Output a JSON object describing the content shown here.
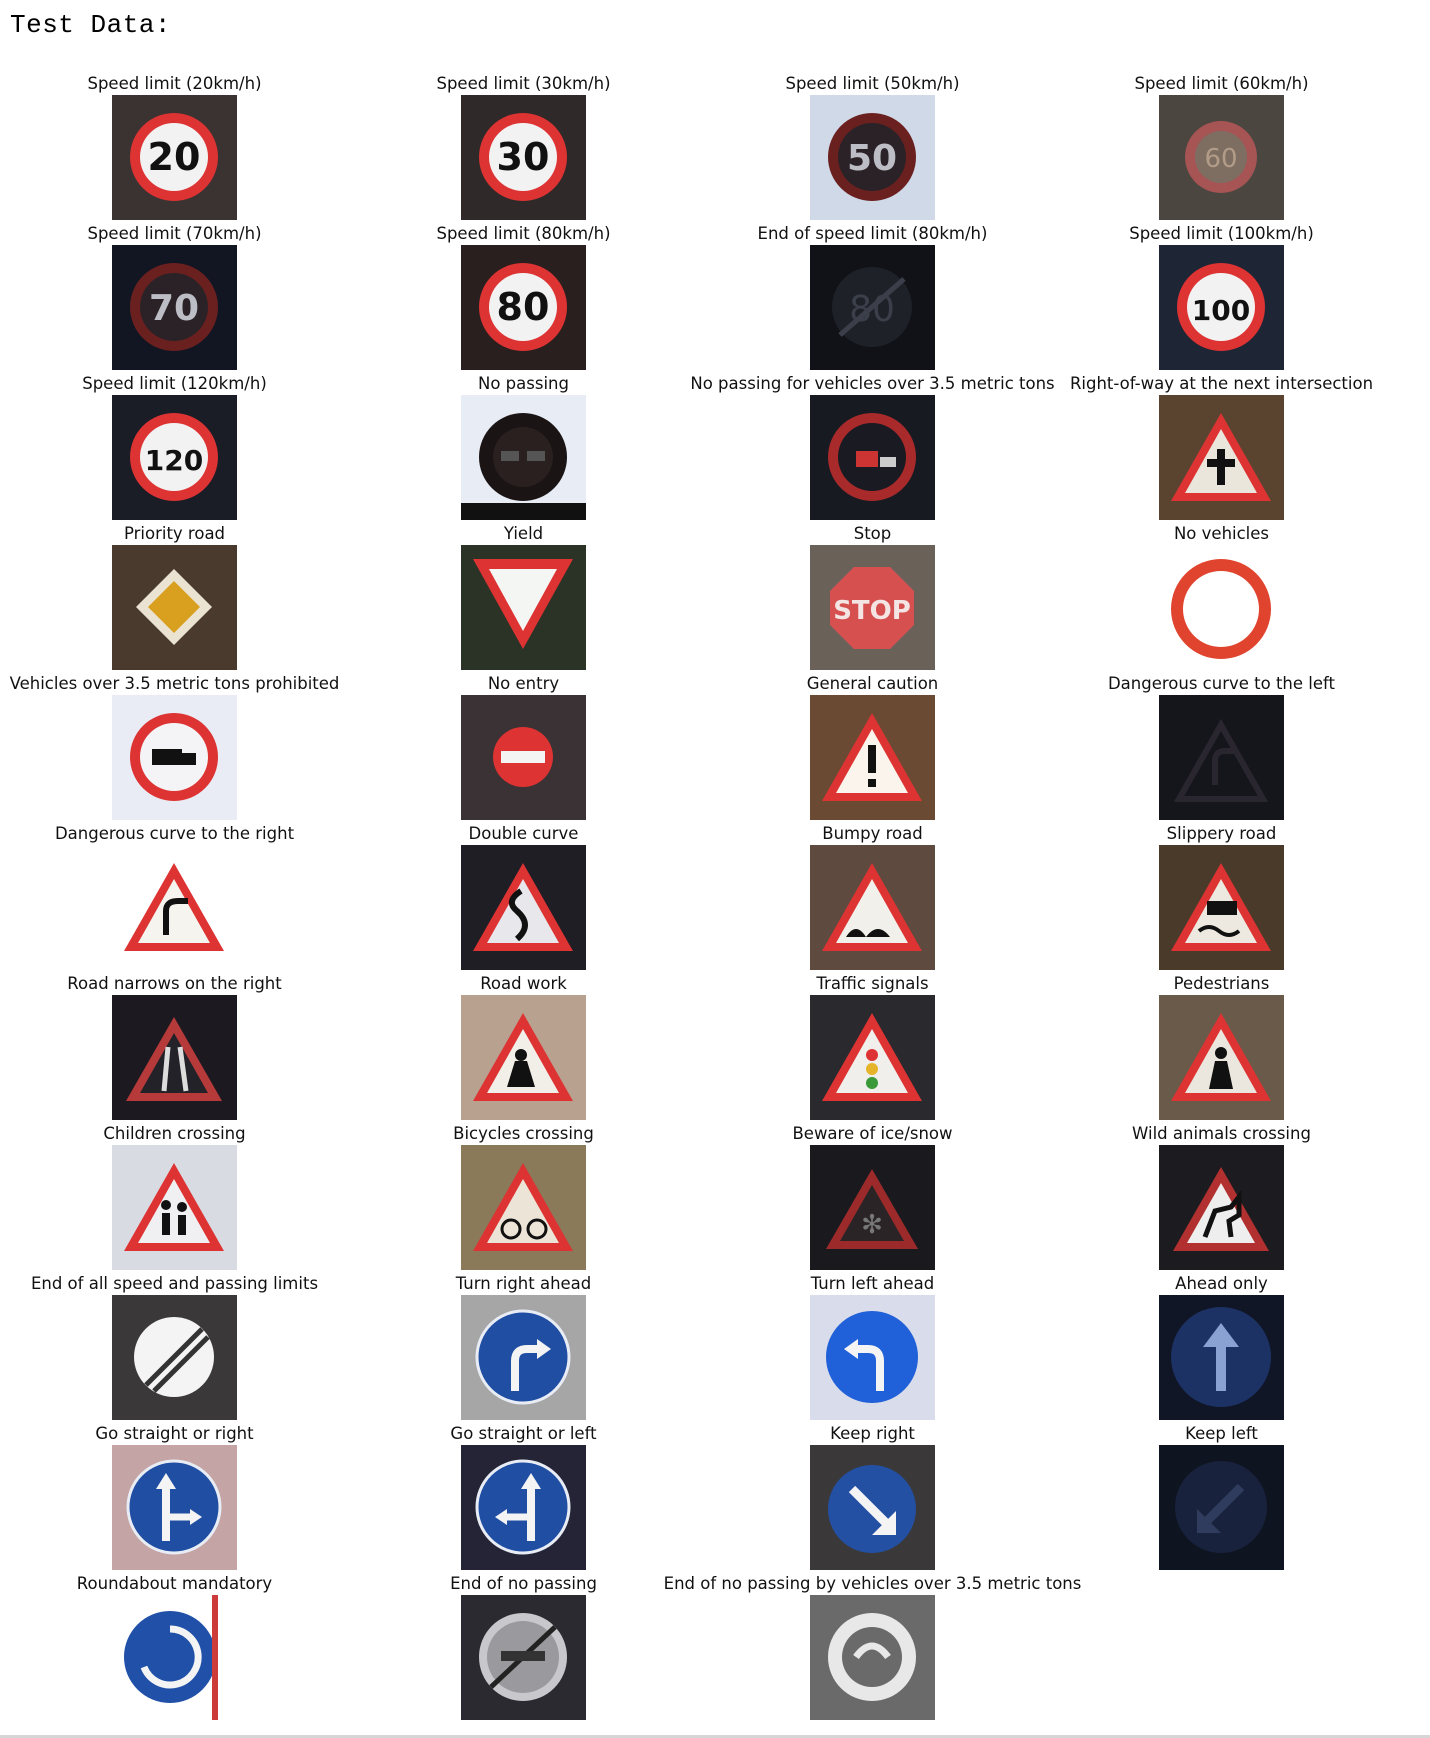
{
  "heading": "Test Data:",
  "signs": [
    {
      "label": "Speed limit (20km/h)",
      "kind": "speed",
      "text": "20",
      "bg": "#3b3232"
    },
    {
      "label": "Speed limit (30km/h)",
      "kind": "speed",
      "text": "30",
      "bg": "#2f2929"
    },
    {
      "label": "Speed limit (50km/h)",
      "kind": "speed-dark",
      "text": "50",
      "bg": "#cfd9e8"
    },
    {
      "label": "Speed limit (60km/h)",
      "kind": "speed-faint",
      "text": "60",
      "bg": "#4b4640"
    },
    {
      "label": "Speed limit (70km/h)",
      "kind": "speed-dark",
      "text": "70",
      "bg": "#121522"
    },
    {
      "label": "Speed limit (80km/h)",
      "kind": "speed",
      "text": "80",
      "bg": "#2a1f1f"
    },
    {
      "label": "End of speed limit (80km/h)",
      "kind": "end-speed",
      "text": "80",
      "bg": "#101218"
    },
    {
      "label": "Speed limit (100km/h)",
      "kind": "speed",
      "text": "100",
      "bg": "#1e2535"
    },
    {
      "label": "Speed limit (120km/h)",
      "kind": "speed",
      "text": "120",
      "bg": "#1a1c26"
    },
    {
      "label": "No passing",
      "kind": "no-passing",
      "bg": "#e8ecf4"
    },
    {
      "label": "No passing for vehicles over 3.5 metric tons",
      "kind": "no-passing-truck",
      "bg": "#181a22"
    },
    {
      "label": "Right-of-way at the next intersection",
      "kind": "triangle-plus",
      "bg": "#5a4430"
    },
    {
      "label": "Priority road",
      "kind": "priority",
      "bg": "#4a3a2e"
    },
    {
      "label": "Yield",
      "kind": "yield",
      "bg": "#2a3326"
    },
    {
      "label": "Stop",
      "kind": "stop",
      "bg": "#6a6258"
    },
    {
      "label": "No vehicles",
      "kind": "no-vehicles",
      "bg": "#ffffff"
    },
    {
      "label": "Vehicles over 3.5 metric tons prohibited",
      "kind": "no-trucks",
      "bg": "#e9ecf5"
    },
    {
      "label": "No entry",
      "kind": "no-entry",
      "bg": "#3a3234"
    },
    {
      "label": "General caution",
      "kind": "caution",
      "bg": "#6b4a34"
    },
    {
      "label": "Dangerous curve to the left",
      "kind": "curve-left",
      "bg": "#15161c"
    },
    {
      "label": "Dangerous curve to the right",
      "kind": "curve-right",
      "bg": "#ffffff"
    },
    {
      "label": "Double curve",
      "kind": "double-curve",
      "bg": "#1e1e24"
    },
    {
      "label": "Bumpy road",
      "kind": "bumpy",
      "bg": "#5e4a3e"
    },
    {
      "label": "Slippery road",
      "kind": "slippery",
      "bg": "#4a3a2a"
    },
    {
      "label": "Road narrows on the right",
      "kind": "narrows",
      "bg": "#1c1a20"
    },
    {
      "label": "Road work",
      "kind": "roadwork",
      "bg": "#b9a190"
    },
    {
      "label": "Traffic signals",
      "kind": "signals",
      "bg": "#2a2a2e"
    },
    {
      "label": "Pedestrians",
      "kind": "pedestrian",
      "bg": "#6a5a4a"
    },
    {
      "label": "Children crossing",
      "kind": "children",
      "bg": "#d9dbe2"
    },
    {
      "label": "Bicycles crossing",
      "kind": "bicycle",
      "bg": "#8a7a5a"
    },
    {
      "label": "Beware of ice/snow",
      "kind": "snow",
      "bg": "#1a1a1e"
    },
    {
      "label": "Wild animals crossing",
      "kind": "deer",
      "bg": "#1c1c20"
    },
    {
      "label": "End of all speed and passing limits",
      "kind": "end-all",
      "bg": "#3a3838"
    },
    {
      "label": "Turn right ahead",
      "kind": "turn-right",
      "bg": "#a6a6a6"
    },
    {
      "label": "Turn left ahead",
      "kind": "turn-left",
      "bg": "#d8dceb"
    },
    {
      "label": "Ahead only",
      "kind": "ahead",
      "bg": "#101626"
    },
    {
      "label": "Go straight or right",
      "kind": "straight-right",
      "bg": "#c4a4a4"
    },
    {
      "label": "Go straight or left",
      "kind": "straight-left",
      "bg": "#242436"
    },
    {
      "label": "Keep right",
      "kind": "keep-right",
      "bg": "#3a3838"
    },
    {
      "label": "Keep left",
      "kind": "keep-left",
      "bg": "#0e1420"
    },
    {
      "label": "Roundabout mandatory",
      "kind": "roundabout",
      "bg": "#ffffff"
    },
    {
      "label": "End of no passing",
      "kind": "end-no-passing",
      "bg": "#2a2a30"
    },
    {
      "label": "End of no passing by vehicles over 3.5 metric tons",
      "kind": "end-no-passing-truck",
      "bg": "#6a6a6a"
    }
  ]
}
